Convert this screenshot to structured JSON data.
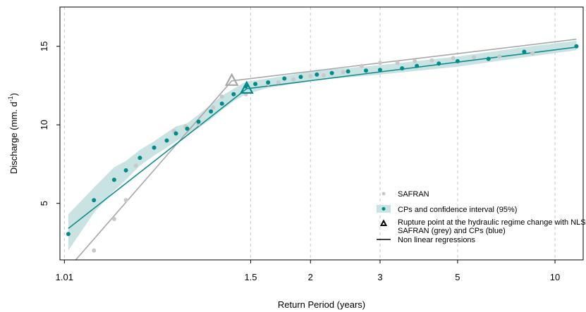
{
  "chart_data": {
    "type": "scatter",
    "xlabel": "Return Period (years)",
    "ylabel_main": "Discharge (mm. d",
    "ylabel_sup": "-1",
    "ylabel_close": ")",
    "x_scale": "gumbel (return period)",
    "xlim": [
      1.0085,
      12.3
    ],
    "ylim": [
      1.4,
      17.5
    ],
    "x_ticks": [
      {
        "value": 1.01,
        "label": "1.01"
      },
      {
        "value": 1.5,
        "label": "1.5"
      },
      {
        "value": 2,
        "label": "2"
      },
      {
        "value": 3,
        "label": "3"
      },
      {
        "value": 5,
        "label": "5"
      },
      {
        "value": 10,
        "label": "10"
      }
    ],
    "y_ticks": [
      {
        "value": 5,
        "label": "5"
      },
      {
        "value": 10,
        "label": "10"
      },
      {
        "value": 15,
        "label": "15"
      }
    ],
    "grid": "vertical dashed at x ticks",
    "colors": {
      "safran": "#c8c8c8",
      "cps": "#008b8b",
      "ci": "#c9e2e2",
      "safran_line": "#a8a8a8",
      "cps_line": "#0e8c8c"
    },
    "series": [
      {
        "name": "SAFRAN",
        "points": [
          {
            "x": 1.026,
            "y": 2.0
          },
          {
            "x": 1.045,
            "y": 4.0
          },
          {
            "x": 1.06,
            "y": 5.2
          },
          {
            "x": 1.075,
            "y": 7.4
          },
          {
            "x": 1.16,
            "y": 9.6
          },
          {
            "x": 1.195,
            "y": 9.9
          },
          {
            "x": 1.24,
            "y": 10.05
          },
          {
            "x": 1.3,
            "y": 11.1
          },
          {
            "x": 1.34,
            "y": 11.8
          },
          {
            "x": 1.4,
            "y": 11.95
          },
          {
            "x": 1.47,
            "y": 11.95
          },
          {
            "x": 1.62,
            "y": 12.6
          },
          {
            "x": 1.7,
            "y": 12.7
          },
          {
            "x": 1.83,
            "y": 12.9
          },
          {
            "x": 2.0,
            "y": 13.1
          },
          {
            "x": 2.15,
            "y": 13.15
          },
          {
            "x": 2.4,
            "y": 13.35
          },
          {
            "x": 2.68,
            "y": 13.75
          },
          {
            "x": 3.0,
            "y": 13.95
          },
          {
            "x": 3.35,
            "y": 13.95
          },
          {
            "x": 3.75,
            "y": 14.05
          },
          {
            "x": 4.2,
            "y": 14.1
          },
          {
            "x": 4.85,
            "y": 14.25
          },
          {
            "x": 5.6,
            "y": 14.3
          },
          {
            "x": 6.7,
            "y": 14.35
          },
          {
            "x": 8.5,
            "y": 14.55
          },
          {
            "x": 11.7,
            "y": 15.0
          }
        ]
      },
      {
        "name": "CPs and confidence interval (95%)",
        "points": [
          {
            "x": 1.0115,
            "y": 3.05
          },
          {
            "x": 1.026,
            "y": 5.2
          },
          {
            "x": 1.045,
            "y": 6.5
          },
          {
            "x": 1.06,
            "y": 7.1
          },
          {
            "x": 1.082,
            "y": 7.9
          },
          {
            "x": 1.11,
            "y": 8.55
          },
          {
            "x": 1.14,
            "y": 9.0
          },
          {
            "x": 1.165,
            "y": 9.45
          },
          {
            "x": 1.2,
            "y": 9.75
          },
          {
            "x": 1.24,
            "y": 10.2
          },
          {
            "x": 1.29,
            "y": 10.85
          },
          {
            "x": 1.34,
            "y": 11.35
          },
          {
            "x": 1.4,
            "y": 11.95
          },
          {
            "x": 1.47,
            "y": 12.45
          },
          {
            "x": 1.53,
            "y": 12.6
          },
          {
            "x": 1.62,
            "y": 12.7
          },
          {
            "x": 1.75,
            "y": 12.95
          },
          {
            "x": 1.9,
            "y": 13.05
          },
          {
            "x": 2.07,
            "y": 13.2
          },
          {
            "x": 2.25,
            "y": 13.3
          },
          {
            "x": 2.47,
            "y": 13.4
          },
          {
            "x": 2.75,
            "y": 13.45
          },
          {
            "x": 3.0,
            "y": 13.5
          },
          {
            "x": 3.45,
            "y": 13.6
          },
          {
            "x": 3.8,
            "y": 13.75
          },
          {
            "x": 4.4,
            "y": 13.9
          },
          {
            "x": 5.0,
            "y": 14.05
          },
          {
            "x": 6.2,
            "y": 14.2
          },
          {
            "x": 8.0,
            "y": 14.65
          },
          {
            "x": 11.7,
            "y": 15.0
          }
        ]
      }
    ],
    "confidence_interval": [
      {
        "x": 1.0115,
        "lower": 2.0,
        "upper": 4.3
      },
      {
        "x": 1.026,
        "lower": 4.4,
        "upper": 6.0
      },
      {
        "x": 1.045,
        "lower": 5.8,
        "upper": 7.3
      },
      {
        "x": 1.06,
        "lower": 6.5,
        "upper": 7.7
      },
      {
        "x": 1.082,
        "lower": 7.4,
        "upper": 8.4
      },
      {
        "x": 1.11,
        "lower": 8.05,
        "upper": 8.95
      },
      {
        "x": 1.14,
        "lower": 8.55,
        "upper": 9.5
      },
      {
        "x": 1.165,
        "lower": 8.95,
        "upper": 9.9
      },
      {
        "x": 1.2,
        "lower": 9.4,
        "upper": 10.1
      },
      {
        "x": 1.24,
        "lower": 9.8,
        "upper": 10.65
      },
      {
        "x": 1.29,
        "lower": 10.35,
        "upper": 11.3
      },
      {
        "x": 1.34,
        "lower": 10.95,
        "upper": 11.85
      },
      {
        "x": 1.4,
        "lower": 11.5,
        "upper": 12.3
      },
      {
        "x": 1.47,
        "lower": 11.95,
        "upper": 12.75
      },
      {
        "x": 1.62,
        "lower": 12.35,
        "upper": 12.95
      },
      {
        "x": 2.07,
        "lower": 12.85,
        "upper": 13.45
      },
      {
        "x": 3.0,
        "lower": 13.2,
        "upper": 13.8
      },
      {
        "x": 5.0,
        "lower": 13.7,
        "upper": 14.35
      },
      {
        "x": 8.0,
        "lower": 14.3,
        "upper": 14.95
      },
      {
        "x": 11.7,
        "lower": 14.75,
        "upper": 15.35
      }
    ],
    "regressions": [
      {
        "name": "SAFRAN",
        "points": [
          {
            "x": 1.0148,
            "y": 1.4
          },
          {
            "x": 1.39,
            "y": 12.8
          },
          {
            "x": 11.7,
            "y": 15.45
          }
        ]
      },
      {
        "name": "CPs",
        "points": [
          {
            "x": 1.0115,
            "y": 3.4
          },
          {
            "x": 1.475,
            "y": 12.3
          },
          {
            "x": 11.7,
            "y": 14.95
          }
        ]
      }
    ],
    "rupture_points": [
      {
        "series": "SAFRAN",
        "x": 1.39,
        "y": 12.8
      },
      {
        "series": "CPs",
        "x": 1.475,
        "y": 12.3
      }
    ],
    "legend": {
      "placement": "bottom-right",
      "entries": [
        {
          "key": "safran",
          "label": "SAFRAN"
        },
        {
          "key": "cps",
          "label": "CPs and confidence interval (95%)"
        },
        {
          "key": "rupture",
          "label": "Rupture point at the hydraulic regime change with NLS :",
          "label2": "SAFRAN (grey) and CPs (blue)"
        },
        {
          "key": "nls",
          "label": "Non linear regressions"
        }
      ]
    }
  }
}
